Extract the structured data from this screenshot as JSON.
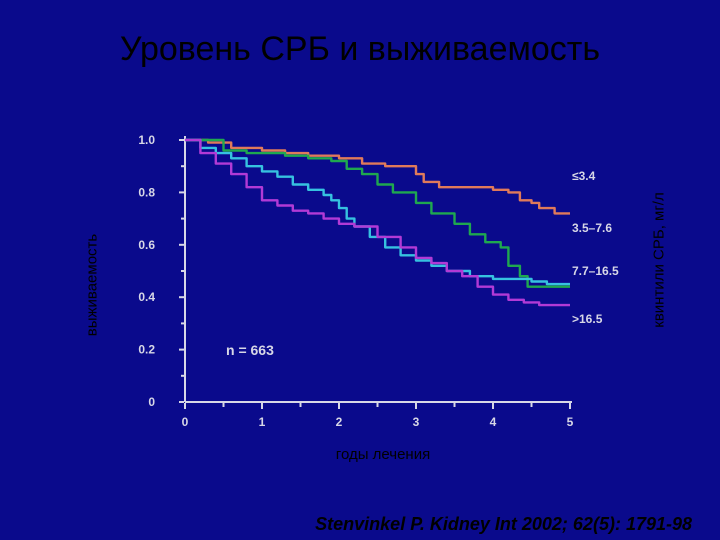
{
  "slide": {
    "title": "Уровень СРБ и выживаемость",
    "citation": "Stenvinkel P. Kidney Int 2002; 62(5): 1791-98"
  },
  "colors": {
    "background": "#0a0a8c",
    "axis": "#d7d7e6",
    "text_dark": "#000000"
  },
  "chart_data": {
    "type": "line",
    "xlabel": "годы лечения",
    "ylabel": "выживаемость",
    "ylabel_right": "квинтили СРБ, мг/л",
    "xlim": [
      0,
      5
    ],
    "ylim": [
      0,
      1.0
    ],
    "x_ticks": [
      "0",
      "1",
      "2",
      "3",
      "4",
      "5"
    ],
    "y_ticks": [
      "0",
      "0.2",
      "0.4",
      "0.6",
      "0.8",
      "1.0"
    ],
    "grid": false,
    "legend_position": "right",
    "annotation": "n = 663",
    "series": [
      {
        "name": "≤3.4",
        "color": "#e07a5a",
        "x": [
          0,
          0.3,
          0.6,
          1.0,
          1.3,
          1.6,
          2.0,
          2.3,
          2.6,
          3.0,
          3.1,
          3.3,
          3.6,
          4.0,
          4.2,
          4.35,
          4.5,
          4.6,
          4.8,
          5.0
        ],
        "y": [
          1.0,
          0.99,
          0.97,
          0.96,
          0.95,
          0.94,
          0.93,
          0.91,
          0.9,
          0.87,
          0.84,
          0.82,
          0.82,
          0.81,
          0.8,
          0.77,
          0.76,
          0.74,
          0.72,
          0.72
        ]
      },
      {
        "name": "3.5–7.6",
        "color": "#1fa84f",
        "x": [
          0,
          0.3,
          0.5,
          0.8,
          1.0,
          1.3,
          1.6,
          1.9,
          2.1,
          2.3,
          2.5,
          2.7,
          3.0,
          3.2,
          3.5,
          3.7,
          3.9,
          4.1,
          4.2,
          4.35,
          4.45,
          4.6,
          5.0
        ],
        "y": [
          1.0,
          1.0,
          0.96,
          0.95,
          0.95,
          0.94,
          0.93,
          0.92,
          0.89,
          0.87,
          0.83,
          0.8,
          0.76,
          0.72,
          0.68,
          0.64,
          0.61,
          0.59,
          0.52,
          0.48,
          0.44,
          0.44,
          0.44
        ]
      },
      {
        "name": "7.7–16.5",
        "color": "#36c2e0",
        "x": [
          0,
          0.2,
          0.4,
          0.6,
          0.8,
          1.0,
          1.2,
          1.4,
          1.6,
          1.8,
          1.9,
          2.0,
          2.1,
          2.2,
          2.4,
          2.6,
          2.8,
          3.0,
          3.2,
          3.4,
          3.7,
          4.0,
          4.3,
          4.5,
          4.7,
          5.0
        ],
        "y": [
          1.0,
          0.97,
          0.95,
          0.93,
          0.9,
          0.88,
          0.86,
          0.83,
          0.81,
          0.79,
          0.77,
          0.74,
          0.7,
          0.67,
          0.63,
          0.59,
          0.56,
          0.54,
          0.52,
          0.5,
          0.48,
          0.47,
          0.47,
          0.46,
          0.45,
          0.45
        ]
      },
      {
        "name": ">16.5",
        "color": "#b23ad6",
        "x": [
          0,
          0.2,
          0.4,
          0.6,
          0.8,
          1.0,
          1.2,
          1.4,
          1.6,
          1.8,
          2.0,
          2.2,
          2.5,
          2.8,
          3.0,
          3.2,
          3.4,
          3.6,
          3.8,
          4.0,
          4.2,
          4.4,
          4.6,
          5.0
        ],
        "y": [
          1.0,
          0.95,
          0.91,
          0.87,
          0.82,
          0.77,
          0.75,
          0.73,
          0.72,
          0.7,
          0.68,
          0.67,
          0.63,
          0.59,
          0.55,
          0.53,
          0.5,
          0.48,
          0.44,
          0.41,
          0.39,
          0.38,
          0.37,
          0.37
        ]
      }
    ]
  }
}
